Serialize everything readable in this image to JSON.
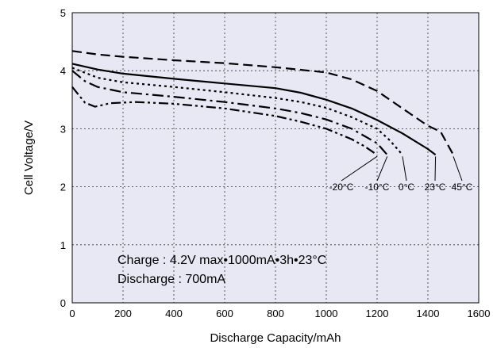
{
  "chart_data": {
    "type": "line",
    "title": "",
    "xlabel": "Discharge Capacity/mAh",
    "ylabel": "Cell Voltage/V",
    "xlim": [
      0,
      1600
    ],
    "ylim": [
      0,
      5
    ],
    "xticks": [
      "0",
      "200",
      "400",
      "600",
      "800",
      "1000",
      "1200",
      "1400",
      "1600"
    ],
    "yticks": [
      "0",
      "1",
      "2",
      "3",
      "4",
      "5"
    ],
    "grid": true,
    "background": "#e8e8f4",
    "annotations": [
      "Charge : 4.2V max•1000mA•3h•23°C",
      "Discharge : 700mA"
    ],
    "series": [
      {
        "name": "45°C",
        "dash": "dashed",
        "x": [
          0,
          100,
          200,
          400,
          600,
          800,
          1000,
          1100,
          1200,
          1300,
          1400,
          1450,
          1500
        ],
        "y": [
          4.34,
          4.28,
          4.24,
          4.18,
          4.13,
          4.06,
          3.97,
          3.85,
          3.65,
          3.35,
          3.05,
          2.95,
          2.55
        ]
      },
      {
        "name": "23°C",
        "dash": "solid",
        "x": [
          0,
          100,
          200,
          400,
          600,
          800,
          900,
          1000,
          1100,
          1200,
          1300,
          1400,
          1430
        ],
        "y": [
          4.12,
          4.02,
          3.95,
          3.86,
          3.78,
          3.7,
          3.62,
          3.5,
          3.35,
          3.15,
          2.92,
          2.65,
          2.55
        ]
      },
      {
        "name": "0°C",
        "dash": "dotted",
        "x": [
          0,
          100,
          200,
          400,
          600,
          800,
          900,
          1000,
          1100,
          1200,
          1250,
          1300
        ],
        "y": [
          4.05,
          3.88,
          3.8,
          3.72,
          3.63,
          3.53,
          3.46,
          3.36,
          3.2,
          3.0,
          2.8,
          2.55
        ]
      },
      {
        "name": "-10°C",
        "dash": "dash-dot",
        "x": [
          0,
          50,
          100,
          200,
          400,
          600,
          800,
          900,
          1000,
          1100,
          1200,
          1240
        ],
        "y": [
          4.0,
          3.82,
          3.72,
          3.63,
          3.55,
          3.46,
          3.35,
          3.27,
          3.16,
          3.0,
          2.75,
          2.55
        ]
      },
      {
        "name": "-20°C",
        "dash": "dash-dot-dot",
        "x": [
          0,
          50,
          90,
          150,
          250,
          400,
          600,
          800,
          900,
          1000,
          1100,
          1150,
          1200
        ],
        "y": [
          3.72,
          3.45,
          3.38,
          3.44,
          3.46,
          3.43,
          3.35,
          3.22,
          3.12,
          3.0,
          2.82,
          2.7,
          2.55
        ]
      }
    ]
  }
}
